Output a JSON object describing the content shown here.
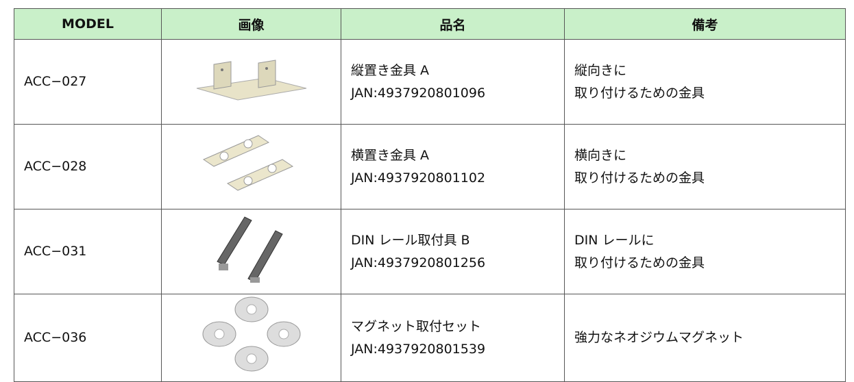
{
  "table": {
    "header": [
      "MODEL",
      "画像",
      "品名",
      "備考"
    ],
    "rows": [
      [
        "ACC−027",
        [
          "縦置き金具 A",
          "JAN:4937920801096"
        ],
        [
          "縦向きに",
          "取り付けるための金具"
        ]
      ],
      [
        "ACC−028",
        [
          "横置き金具 A",
          "JAN:4937920801102"
        ],
        [
          "横向きに",
          "取り付けるための金具"
        ]
      ],
      [
        "ACC−031",
        [
          "DIN レール取付具 B",
          "JAN:4937920801256"
        ],
        [
          "DIN レールに",
          "取り付けるための金具"
        ]
      ],
      [
        "ACC−036",
        [
          "マグネット取付セット",
          "JAN:4937920801539"
        ],
        [
          "強力なネオジウムマグネット"
        ]
      ]
    ]
  }
}
